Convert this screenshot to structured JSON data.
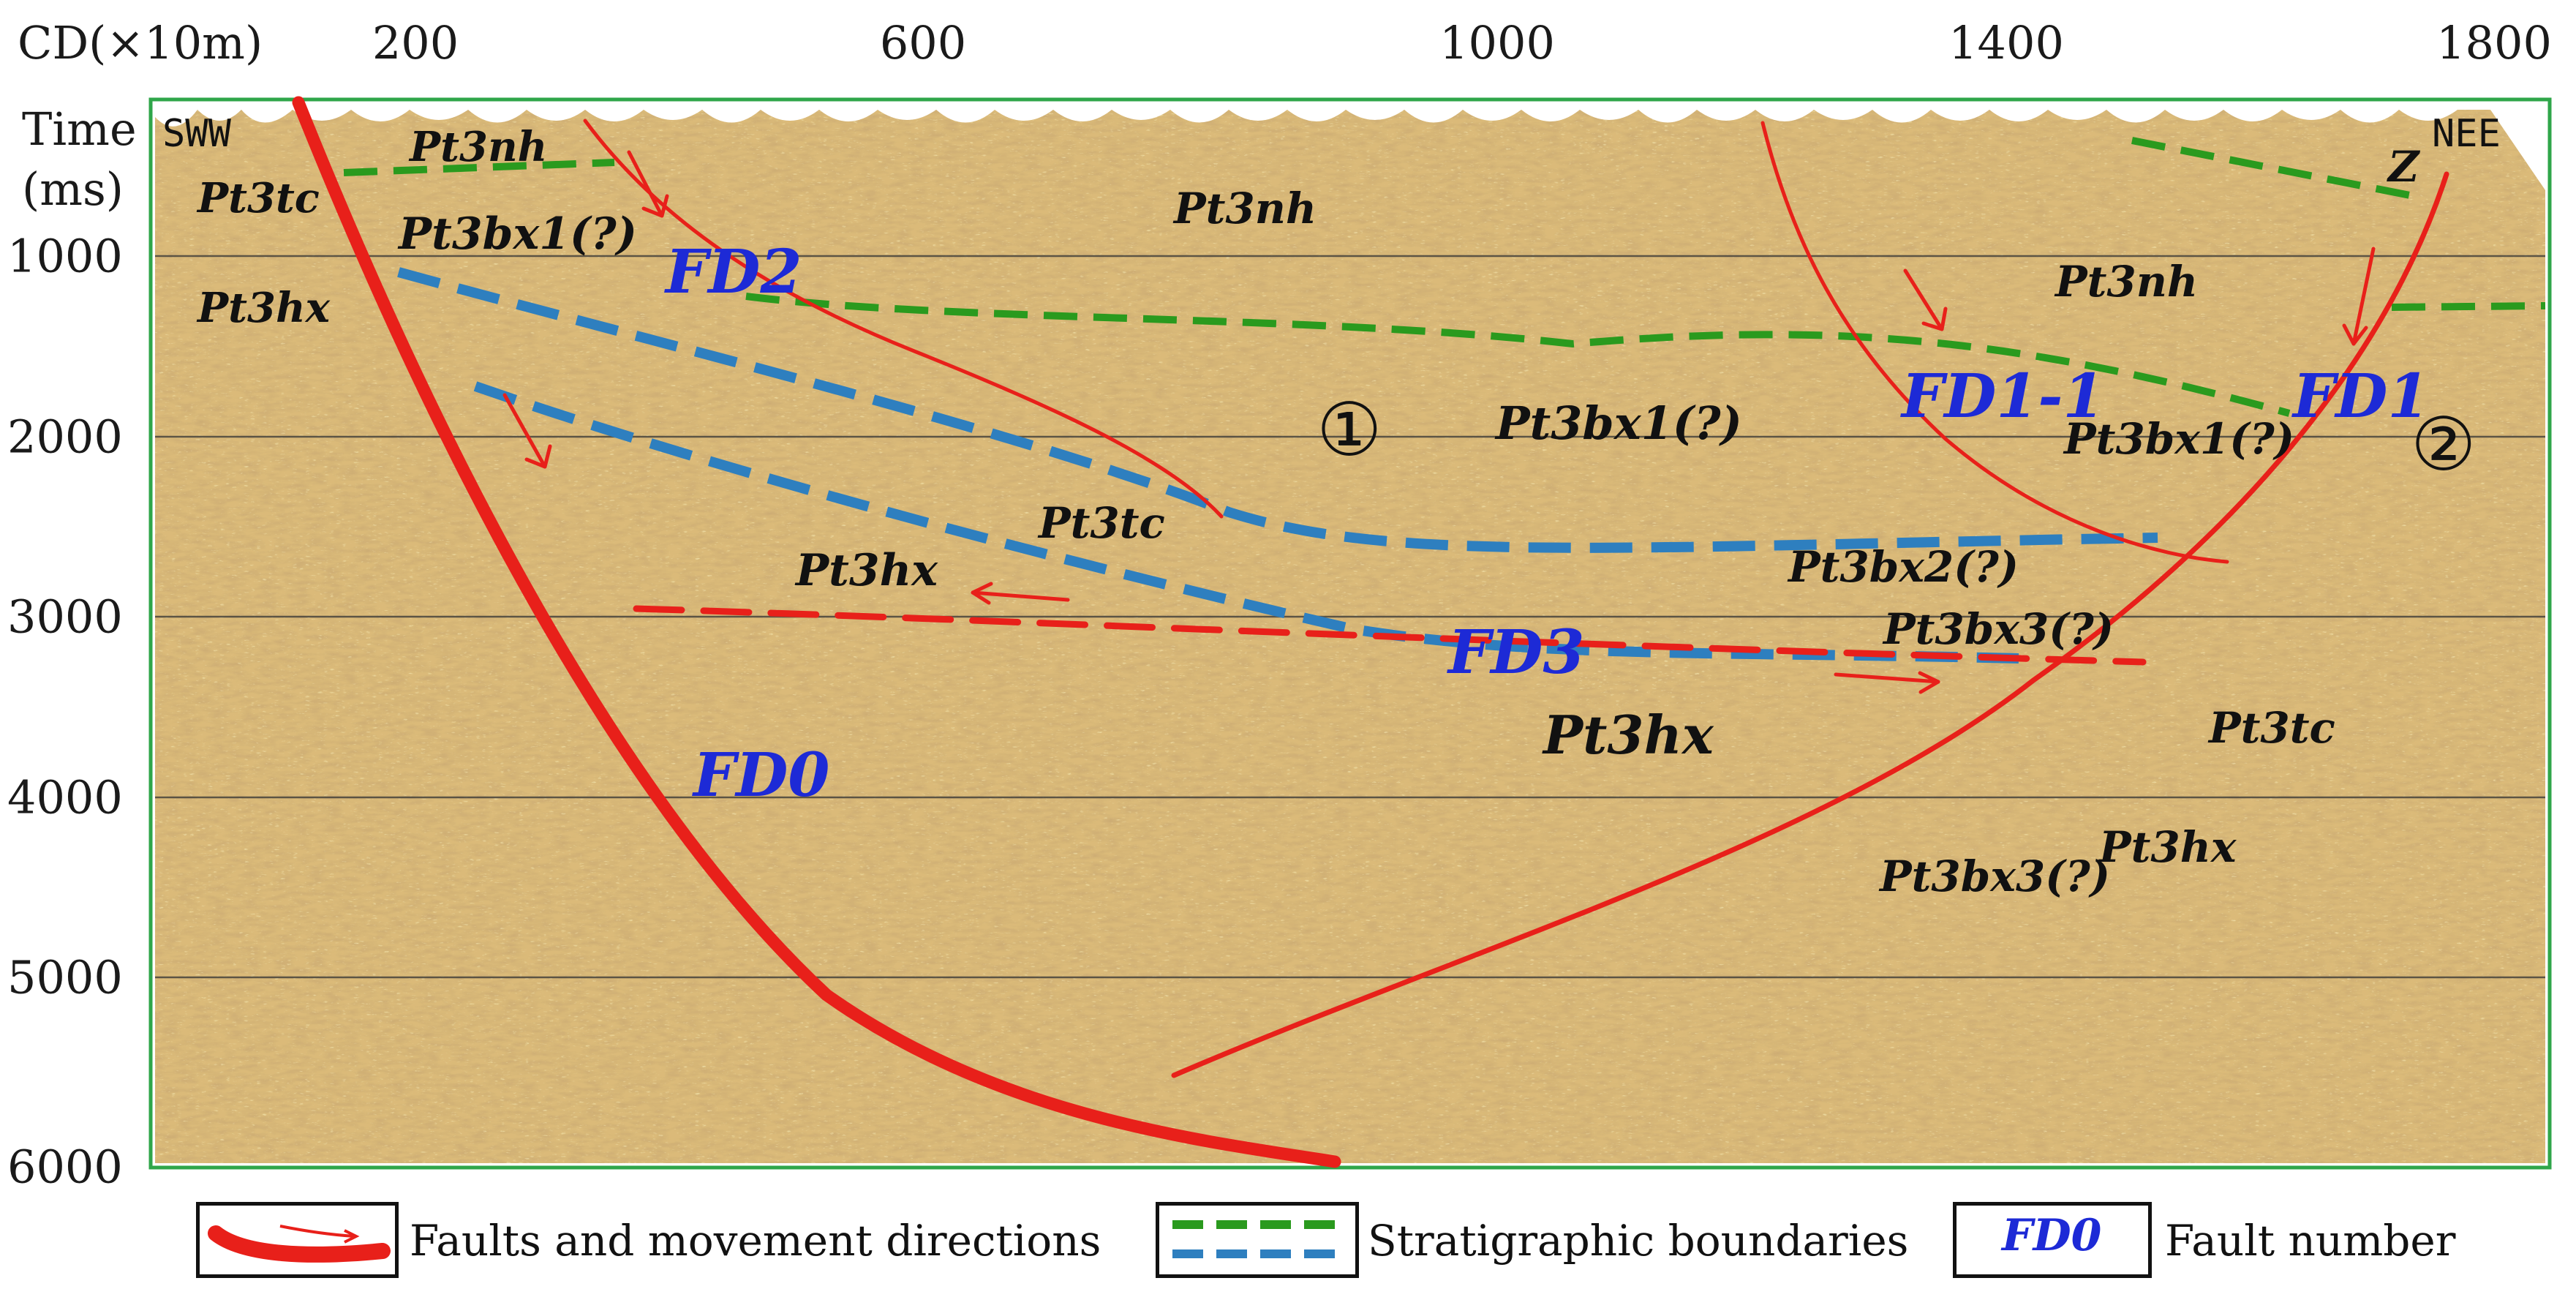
{
  "axes": {
    "x_label": "CD(×10m)",
    "x_ticks": [
      "200",
      "600",
      "1000",
      "1400",
      "1800"
    ],
    "y_label_line1": "Time",
    "y_label_line2": "(ms)",
    "y_ticks": [
      "1000",
      "2000",
      "3000",
      "4000",
      "5000",
      "6000"
    ]
  },
  "directions": {
    "left": "SWW",
    "right": "NEE"
  },
  "formations": [
    "Pt3nh",
    "Pt3tc",
    "Pt3bx1(?)",
    "Pt3hx",
    "Pt3nh",
    "Pt3nh",
    "Pt3bx1(?)",
    "Pt3bx1(?)",
    "Pt3tc",
    "Pt3hx",
    "Pt3bx2(?)",
    "Pt3bx3(?)",
    "Pt3hx",
    "Pt3tc",
    "Pt3bx3(?)",
    "Pt3hx",
    "Z"
  ],
  "faults": [
    "FD2",
    "FD1-1",
    "FD1",
    "FD3",
    "FD0"
  ],
  "zones": [
    "①",
    "②"
  ],
  "legend": {
    "faults_label": "Faults and movement directions",
    "strat_label": "Stratigraphic boundaries",
    "fault_number_label": "Fault number",
    "fault_number_sample": "FD0"
  },
  "colors": {
    "fault": "#e8201a",
    "boundary_green": "#2a9a1e",
    "boundary_blue": "#2e7fbf",
    "fault_label": "#1d2ad6",
    "frame": "#2fa64a",
    "section_base": "#d9b878"
  }
}
